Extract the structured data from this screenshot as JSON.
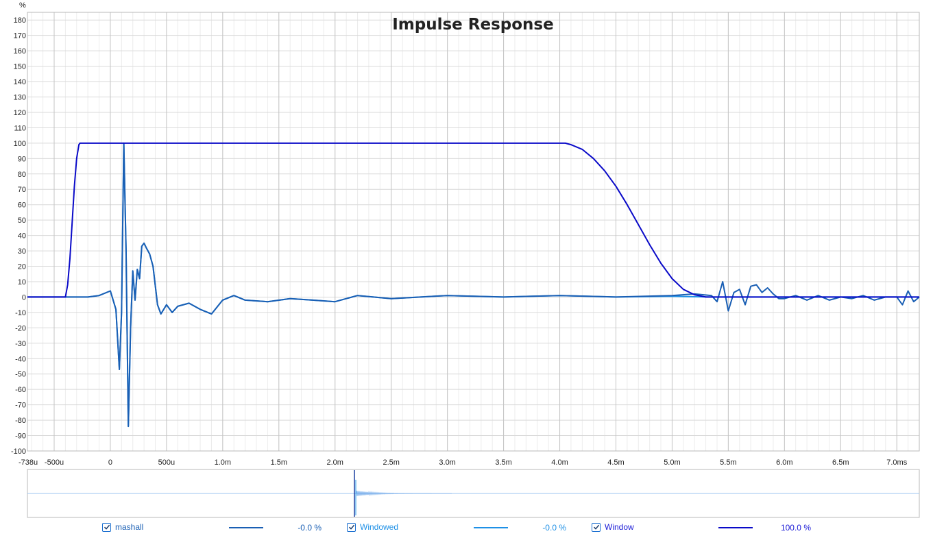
{
  "chart_data": {
    "type": "line",
    "title": "Impulse Response",
    "ylabel": "%",
    "xlabel": "",
    "xlim": [
      -0.738,
      7.2
    ],
    "ylim": [
      -100,
      185
    ],
    "yticks": [
      180,
      170,
      160,
      150,
      140,
      130,
      120,
      110,
      100,
      90,
      80,
      70,
      60,
      50,
      40,
      30,
      20,
      10,
      0,
      -10,
      -20,
      -30,
      -40,
      -50,
      -60,
      -70,
      -80,
      -90,
      -100
    ],
    "ytick_labels": [
      "180",
      "170",
      "160",
      "150",
      "140",
      "130",
      "120",
      "110",
      "100",
      "90",
      "80",
      "70",
      "60",
      "50",
      "40",
      "30",
      "20",
      "10",
      "0",
      "-10",
      "-20",
      "-30",
      "-40",
      "-50",
      "-60",
      "-70",
      "-80",
      "-90",
      "-100"
    ],
    "xticks": [
      -0.738,
      -0.5,
      0,
      0.5,
      1.0,
      1.5,
      2.0,
      2.5,
      3.0,
      3.5,
      4.0,
      4.5,
      5.0,
      5.5,
      6.0,
      6.5,
      7.0
    ],
    "xtick_labels": [
      "-738u",
      "-500u",
      "0",
      "500u",
      "1.0m",
      "1.5m",
      "2.0m",
      "2.5m",
      "3.0m",
      "3.5m",
      "4.0m",
      "4.5m",
      "5.0m",
      "5.5m",
      "6.0m",
      "6.5m",
      "7.0ms"
    ],
    "grid": true,
    "series": [
      {
        "name": "mashall",
        "color": "#1a5fb4",
        "x": [
          -0.738,
          -0.2,
          -0.1,
          0.0,
          0.05,
          0.08,
          0.1,
          0.12,
          0.14,
          0.16,
          0.18,
          0.2,
          0.22,
          0.24,
          0.26,
          0.28,
          0.3,
          0.32,
          0.35,
          0.38,
          0.42,
          0.45,
          0.5,
          0.55,
          0.6,
          0.7,
          0.8,
          0.9,
          1.0,
          1.1,
          1.2,
          1.4,
          1.6,
          1.8,
          2.0,
          2.2,
          2.5,
          3.0,
          3.5,
          4.0,
          4.5,
          5.0,
          5.2,
          5.35,
          5.4,
          5.45,
          5.5,
          5.55,
          5.6,
          5.65,
          5.7,
          5.75,
          5.8,
          5.85,
          5.9,
          5.95,
          6.0,
          6.1,
          6.2,
          6.3,
          6.4,
          6.5,
          6.6,
          6.7,
          6.8,
          6.9,
          7.0,
          7.05,
          7.1,
          7.15,
          7.2
        ],
        "y": [
          0,
          0,
          1,
          4,
          -8,
          -47,
          -10,
          100,
          30,
          -84,
          -20,
          17,
          -2,
          18,
          12,
          33,
          35,
          32,
          28,
          20,
          -5,
          -11,
          -5,
          -10,
          -6,
          -4,
          -8,
          -11,
          -2,
          1,
          -2,
          -3,
          -1,
          -2,
          -3,
          1,
          -1,
          1,
          0,
          1,
          0,
          1,
          2,
          1,
          -3,
          10,
          -9,
          3,
          5,
          -5,
          7,
          8,
          3,
          6,
          2,
          -1,
          -1,
          1,
          -2,
          1,
          -2,
          0,
          -1,
          1,
          -2,
          0,
          0,
          -5,
          4,
          -3,
          0
        ]
      },
      {
        "name": "Windowed",
        "color": "#1e90e6",
        "x": [
          -0.738,
          -0.2,
          -0.1,
          0.0,
          0.05,
          0.08,
          0.1,
          0.12,
          0.14,
          0.16,
          0.18,
          0.2,
          0.22,
          0.24,
          0.26,
          0.28,
          0.3,
          0.32,
          0.35,
          0.38,
          0.42,
          0.45,
          0.5,
          0.55,
          0.6,
          0.7,
          0.8,
          0.9,
          1.0,
          1.1,
          1.2,
          1.4,
          1.6,
          1.8,
          2.0,
          2.2,
          2.5,
          3.0,
          3.5,
          4.0,
          4.5,
          5.0,
          5.2,
          5.35,
          5.5,
          6.0,
          7.2
        ],
        "y": [
          0,
          0,
          1,
          4,
          -8,
          -47,
          -10,
          100,
          30,
          -84,
          -20,
          17,
          -2,
          18,
          12,
          33,
          35,
          32,
          28,
          20,
          -5,
          -11,
          -5,
          -10,
          -6,
          -4,
          -8,
          -11,
          -2,
          1,
          -2,
          -3,
          -1,
          -2,
          -3,
          1,
          -1,
          1,
          0,
          1,
          0,
          0.5,
          0.2,
          0,
          0,
          0,
          0
        ]
      },
      {
        "name": "Window",
        "color": "#0a0ac8",
        "x": [
          -0.738,
          -0.4,
          -0.38,
          -0.36,
          -0.34,
          -0.32,
          -0.3,
          -0.28,
          -0.27,
          4.0,
          4.05,
          4.1,
          4.2,
          4.3,
          4.4,
          4.5,
          4.6,
          4.7,
          4.8,
          4.9,
          5.0,
          5.1,
          5.2,
          5.3,
          5.35,
          7.2
        ],
        "y": [
          0,
          0,
          8,
          25,
          48,
          72,
          90,
          99,
          100,
          100,
          100,
          99,
          96,
          90,
          82,
          72,
          60,
          47,
          34,
          22,
          12,
          5,
          1.5,
          0,
          0,
          0
        ]
      }
    ]
  },
  "legend": [
    {
      "name": "mashall",
      "value": "-0.0 %",
      "color": "#1a5fb4",
      "text_color": "#1a5fb4"
    },
    {
      "name": "Windowed",
      "value": "-0.0 %",
      "color": "#1e90e6",
      "text_color": "#1e90e6"
    },
    {
      "name": "Window",
      "value": "100.0 %",
      "color": "#0a0ac8",
      "text_color": "#1a1ad6"
    }
  ]
}
